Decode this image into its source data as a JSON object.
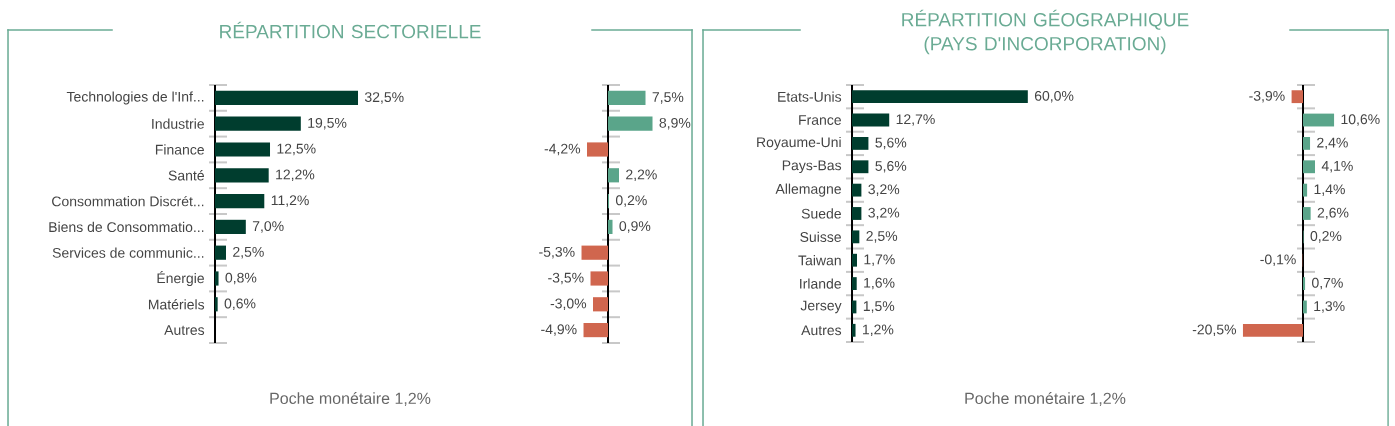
{
  "chart_data": [
    {
      "type": "bar",
      "orientation": "horizontal",
      "title": "RÉPARTITION SECTORIELLE",
      "tick_labels": "y",
      "color": "#003d2e",
      "categories": [
        "Technologies de l'Inf...",
        "Industrie",
        "Finance",
        "Santé",
        "Consommation Discrét...",
        "Biens de Consommatio...",
        "Services de communic...",
        "Énergie",
        "Matériels",
        "Autres"
      ],
      "values": [
        32.5,
        19.5,
        12.5,
        12.2,
        11.2,
        7.0,
        2.5,
        0.8,
        0.6,
        null
      ],
      "value_labels": [
        "32,5%",
        "19,5%",
        "12,5%",
        "12,2%",
        "11,2%",
        "7,0%",
        "2,5%",
        "0,8%",
        "0,6%",
        null
      ],
      "annotations": [
        "Poche monétaire 1,2%"
      ]
    },
    {
      "type": "bar",
      "orientation": "horizontal",
      "tick_labels": false,
      "categories": [
        null,
        null,
        null,
        null,
        null,
        null,
        null,
        null,
        null,
        null
      ],
      "values": [
        7.5,
        8.9,
        -4.2,
        2.2,
        0.2,
        0.9,
        -5.3,
        -3.5,
        -3.0,
        -4.9
      ],
      "colors": [
        "#5aa58a",
        "#5aa58a",
        "#d0664e",
        "#5aa58a",
        "#5aa58a",
        "#5aa58a",
        "#d0664e",
        "#d0664e",
        "#d0664e",
        "#d0664e"
      ],
      "value_labels": [
        "7,5%",
        "8,9%",
        "-4,2%",
        "2,2%",
        "0,2%",
        "0,9%",
        "-5,3%",
        "-3,5%",
        "-3,0%",
        "-4,9%"
      ]
    },
    {
      "type": "bar",
      "orientation": "horizontal",
      "title": "RÉPARTITION GÉOGRAPHIQUE (PAYS D'INCORPORATION)",
      "tick_labels": "y",
      "color": "#003d2e",
      "categories": [
        "Etats-Unis",
        "France",
        "Royaume-Uni",
        "Pays-Bas",
        "Allemagne",
        "Suede",
        "Suisse",
        "Taiwan",
        "Irlande",
        "Jersey",
        "Autres"
      ],
      "values": [
        60.0,
        12.7,
        5.6,
        5.6,
        3.2,
        3.2,
        2.5,
        1.7,
        1.6,
        1.5,
        1.2
      ],
      "value_labels": [
        "60,0%",
        "12,7%",
        "5,6%",
        "5,6%",
        "3,2%",
        "3,2%",
        "2,5%",
        "1,7%",
        "1,6%",
        "1,5%",
        "1,2%"
      ],
      "annotations": [
        "Poche monétaire 1,2%"
      ]
    },
    {
      "type": "bar",
      "orientation": "horizontal",
      "tick_labels": false,
      "categories": [
        null,
        null,
        null,
        null,
        null,
        null,
        null,
        null,
        null,
        null,
        null
      ],
      "values": [
        -3.9,
        10.6,
        2.4,
        4.1,
        1.4,
        2.6,
        0.2,
        -0.1,
        0.7,
        1.3,
        -20.5
      ],
      "colors": [
        "#d0664e",
        "#5aa58a",
        "#5aa58a",
        "#5aa58a",
        "#5aa58a",
        "#5aa58a",
        "#5aa58a",
        "#d0664e",
        "#5aa58a",
        "#5aa58a",
        "#d0664e"
      ],
      "value_labels": [
        "-3,9%",
        "10,6%",
        "2,4%",
        "4,1%",
        "1,4%",
        "2,6%",
        "0,2%",
        "-0,1%",
        "0,7%",
        "1,3%",
        "-20,5%"
      ]
    }
  ]
}
